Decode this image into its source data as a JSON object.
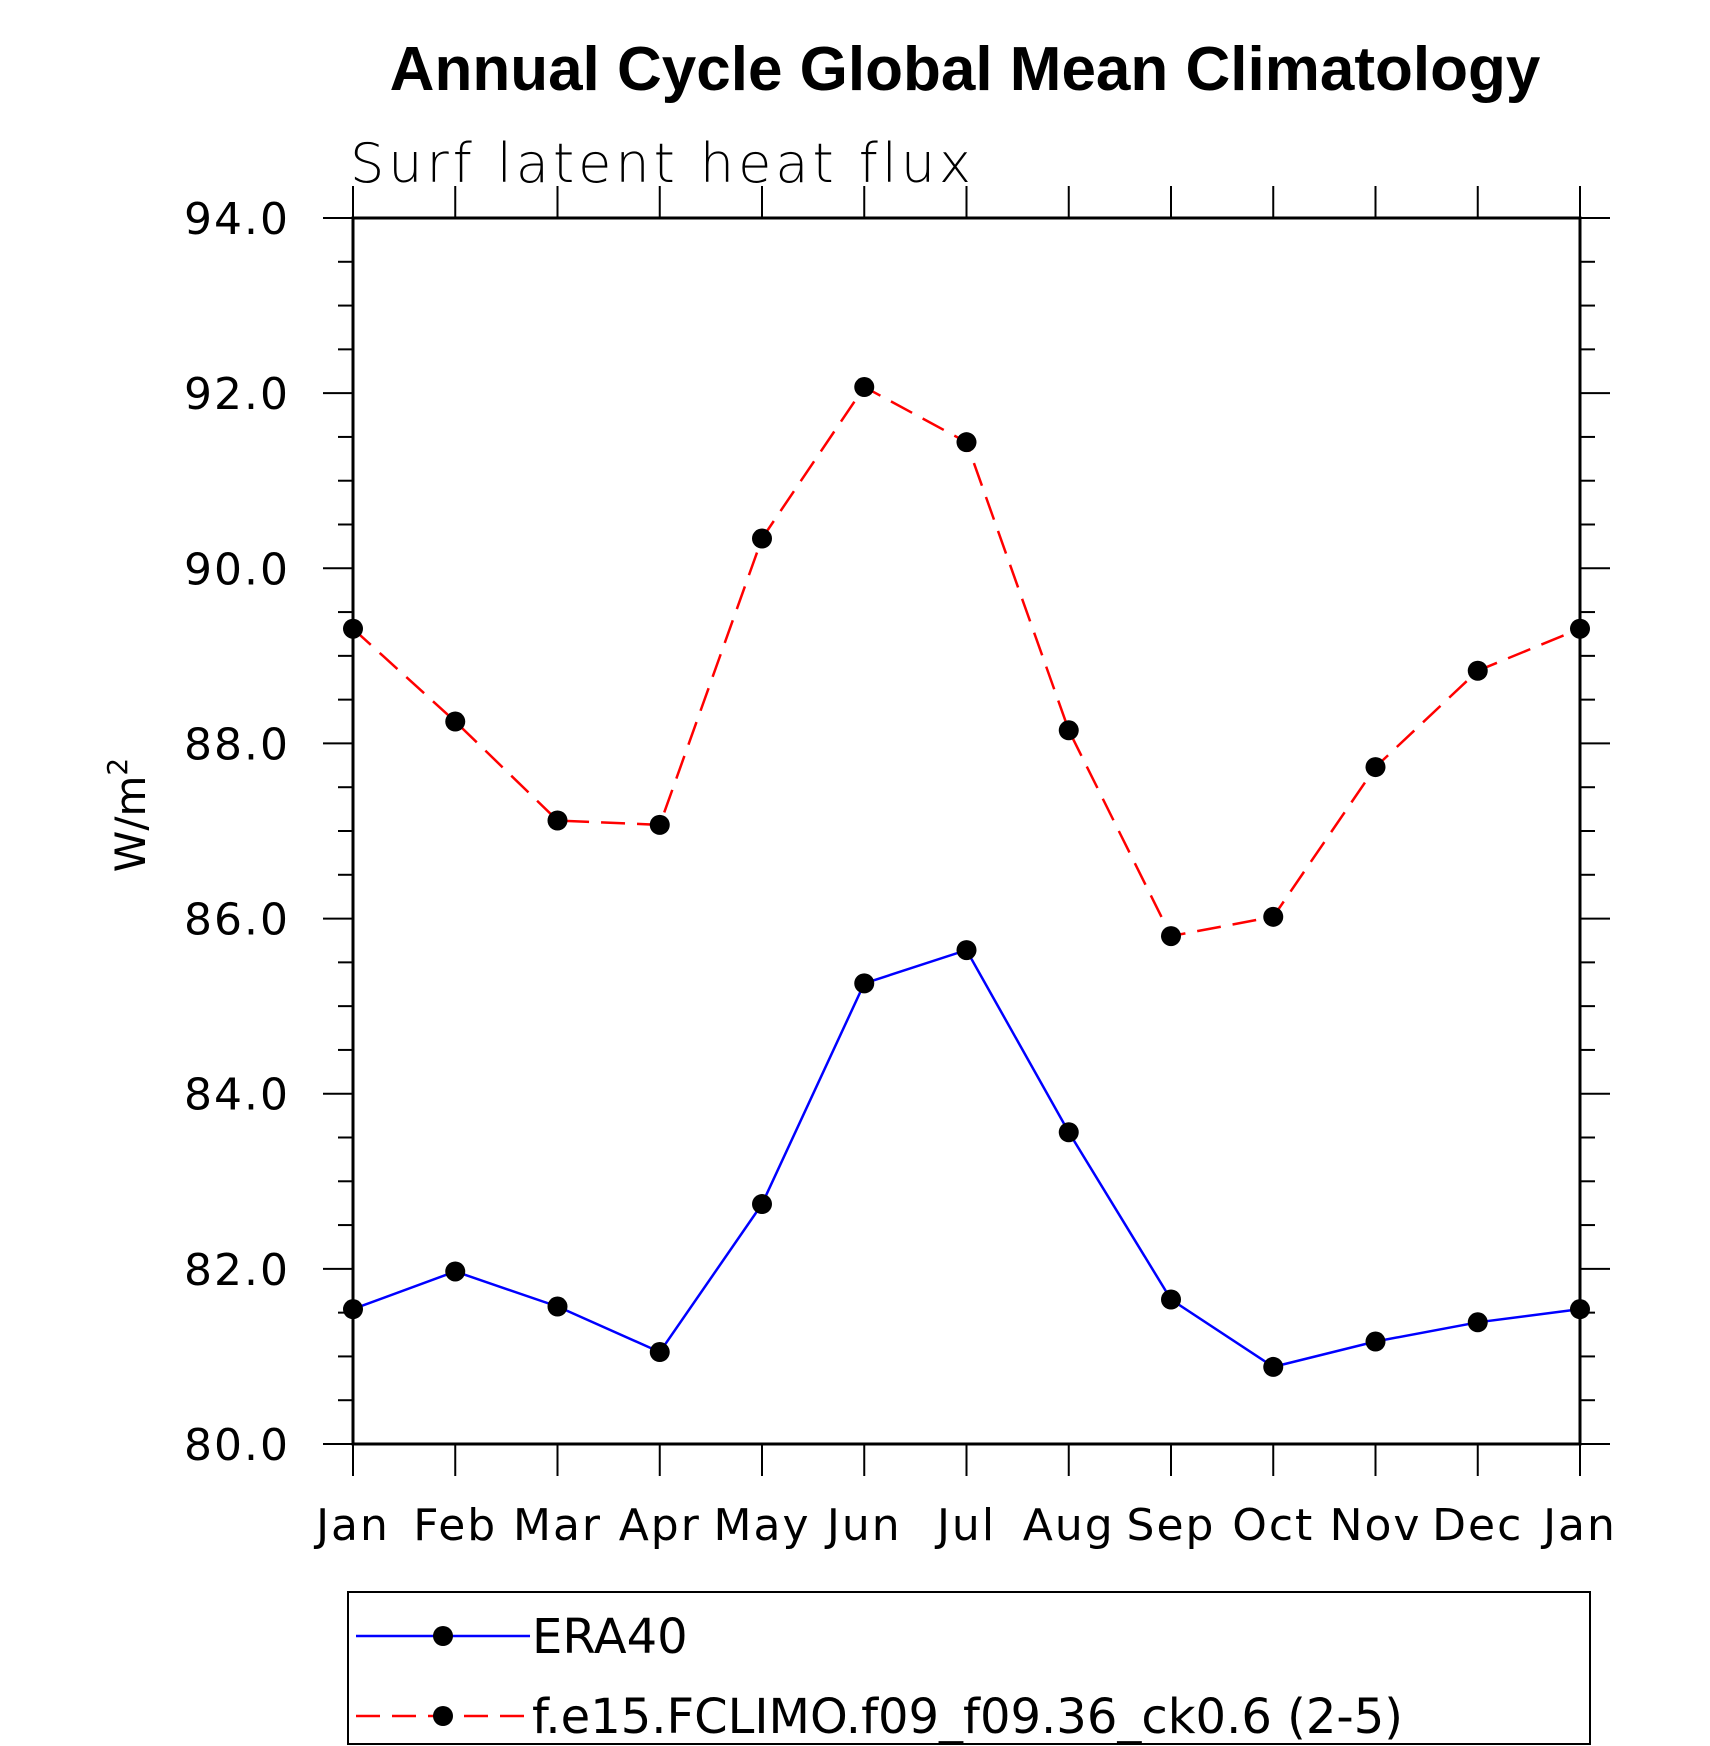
{
  "chart_data": {
    "type": "line",
    "title": "Annual Cycle Global Mean Climatology",
    "subtitle": "Surf latent heat flux",
    "xlabel": "",
    "ylabel": "W/m",
    "ylabel_superscript": "2",
    "categories": [
      "Jan",
      "Feb",
      "Mar",
      "Apr",
      "May",
      "Jun",
      "Jul",
      "Aug",
      "Sep",
      "Oct",
      "Nov",
      "Dec",
      "Jan"
    ],
    "ylim": [
      80.0,
      94.0
    ],
    "yticks": [
      "80.0",
      "82.0",
      "84.0",
      "86.0",
      "88.0",
      "90.0",
      "92.0",
      "94.0"
    ],
    "grid": false,
    "legend_position": "bottom",
    "series": [
      {
        "name": "ERA40",
        "color": "#0000ff",
        "line_style": "solid",
        "marker": "filled-circle",
        "values": [
          81.54,
          81.97,
          81.57,
          81.05,
          82.74,
          85.26,
          85.64,
          83.56,
          81.65,
          80.88,
          81.17,
          81.39,
          81.54
        ]
      },
      {
        "name": "f.e15.FCLIMO.f09_f09.36_ck0.6 (2-5)",
        "color": "#ff0000",
        "line_style": "dashed",
        "marker": "filled-circle",
        "values": [
          89.31,
          88.25,
          87.12,
          87.07,
          90.34,
          92.07,
          91.44,
          88.15,
          85.8,
          86.02,
          87.73,
          88.83,
          89.31
        ]
      }
    ]
  }
}
